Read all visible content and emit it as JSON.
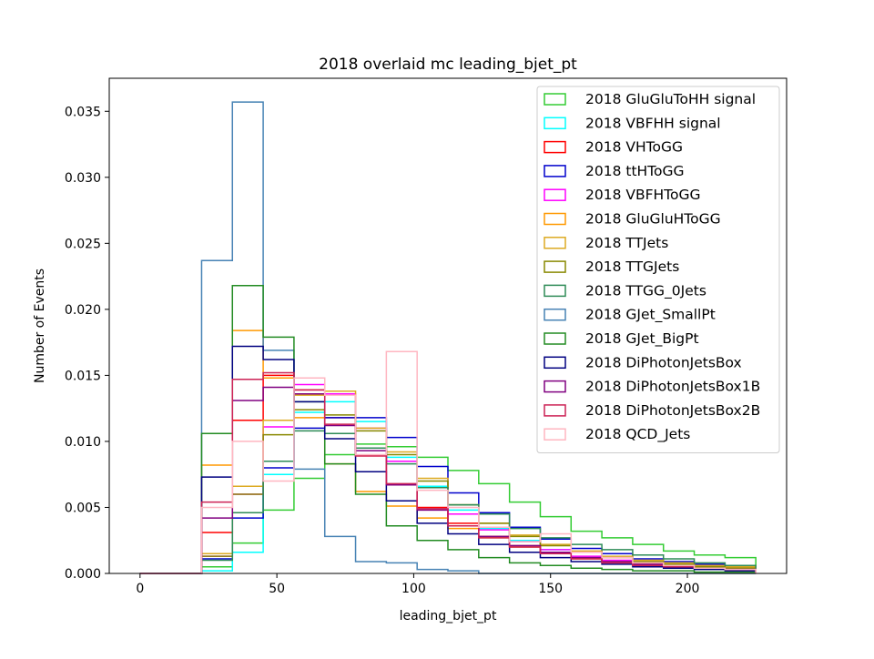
{
  "chart_data": {
    "type": "step-histogram",
    "title": "2018 overlaid mc leading_bjet_pt",
    "xlabel": "leading_bjet_pt",
    "ylabel": "Number of Events",
    "xlim": [
      -11.25,
      236.25
    ],
    "ylim": [
      0,
      0.0375
    ],
    "xticks": [
      0,
      50,
      100,
      150,
      200
    ],
    "xtick_labels": [
      "0",
      "50",
      "100",
      "150",
      "200"
    ],
    "yticks": [
      0.0,
      0.005,
      0.01,
      0.015,
      0.02,
      0.025,
      0.03,
      0.035
    ],
    "ytick_labels": [
      "0.000",
      "0.005",
      "0.010",
      "0.015",
      "0.020",
      "0.025",
      "0.030",
      "0.035"
    ],
    "grid": false,
    "legend_position": "upper right",
    "bin_edges": [
      0,
      11.25,
      22.5,
      33.75,
      45,
      56.25,
      67.5,
      78.75,
      90,
      101.25,
      112.5,
      123.75,
      135,
      146.25,
      157.5,
      168.75,
      180,
      191.25,
      202.5,
      213.75,
      225
    ],
    "series": [
      {
        "name": "2018 GluGluToHH signal",
        "color": "#33cc33",
        "values": [
          0,
          0,
          0.0005,
          0.0023,
          0.0048,
          0.0072,
          0.009,
          0.0098,
          0.0096,
          0.0088,
          0.0078,
          0.0068,
          0.0054,
          0.0043,
          0.0032,
          0.0027,
          0.0022,
          0.0017,
          0.0014,
          0.0012
        ]
      },
      {
        "name": "2018 VBFHH signal",
        "color": "#00ffff",
        "values": [
          0,
          0,
          0.0002,
          0.0016,
          0.0075,
          0.0122,
          0.013,
          0.0115,
          0.0088,
          0.0066,
          0.0048,
          0.0034,
          0.0025,
          0.0018,
          0.0012,
          0.0009,
          0.0007,
          0.0005,
          0.0004,
          0.0003
        ]
      },
      {
        "name": "2018 VHToGG",
        "color": "#ff0000",
        "values": [
          0,
          0,
          0.0031,
          0.0116,
          0.015,
          0.0139,
          0.0118,
          0.0089,
          0.0067,
          0.005,
          0.0038,
          0.0028,
          0.0021,
          0.0016,
          0.0012,
          0.0009,
          0.0007,
          0.0005,
          0.0004,
          0.0003
        ]
      },
      {
        "name": "2018 ttHToGG",
        "color": "#0000cc",
        "values": [
          0,
          0,
          0.0011,
          0.0042,
          0.008,
          0.011,
          0.0118,
          0.0118,
          0.0103,
          0.0081,
          0.0061,
          0.0046,
          0.0035,
          0.0026,
          0.0019,
          0.0015,
          0.0011,
          0.0009,
          0.0007,
          0.0005
        ]
      },
      {
        "name": "2018 VBFHToGG",
        "color": "#ff00ff",
        "values": [
          0,
          0,
          0.0013,
          0.006,
          0.0111,
          0.0143,
          0.0136,
          0.011,
          0.0085,
          0.0065,
          0.0045,
          0.0033,
          0.0024,
          0.0018,
          0.0013,
          0.001,
          0.0008,
          0.0006,
          0.0005,
          0.0004
        ]
      },
      {
        "name": "2018 GluGluHToGG",
        "color": "#ff9900",
        "values": [
          0,
          0,
          0.0082,
          0.0184,
          0.0148,
          0.0118,
          0.0083,
          0.0062,
          0.0051,
          0.0042,
          0.0034,
          0.0027,
          0.002,
          0.0015,
          0.0011,
          0.0008,
          0.0006,
          0.0005,
          0.0004,
          0.0003
        ]
      },
      {
        "name": "2018 TTJets",
        "color": "#ddaa22",
        "values": [
          0,
          0,
          0.0015,
          0.0066,
          0.0116,
          0.0135,
          0.0138,
          0.011,
          0.0092,
          0.0072,
          0.0052,
          0.0038,
          0.0029,
          0.0022,
          0.0017,
          0.0013,
          0.001,
          0.0008,
          0.0006,
          0.0005
        ]
      },
      {
        "name": "2018 TTGJets",
        "color": "#888800",
        "values": [
          0,
          0,
          0.0013,
          0.006,
          0.0105,
          0.0124,
          0.012,
          0.0108,
          0.009,
          0.007,
          0.0052,
          0.0038,
          0.0028,
          0.0021,
          0.0016,
          0.0012,
          0.0009,
          0.0007,
          0.0005,
          0.0004
        ]
      },
      {
        "name": "2018 TTGG_0Jets",
        "color": "#2e8b57",
        "values": [
          0,
          0,
          0.001,
          0.0046,
          0.0085,
          0.0108,
          0.0106,
          0.0095,
          0.0083,
          0.0065,
          0.0052,
          0.0045,
          0.0034,
          0.0027,
          0.0022,
          0.0018,
          0.0014,
          0.0011,
          0.0008,
          0.0006
        ]
      },
      {
        "name": "2018 GJet_SmallPt",
        "color": "#4682b4",
        "values": [
          0,
          0,
          0.0237,
          0.0357,
          0.0169,
          0.0079,
          0.0028,
          0.0009,
          0.0008,
          0.0003,
          0.0002,
          0,
          0,
          0,
          0,
          0,
          0,
          0,
          0,
          0
        ]
      },
      {
        "name": "2018 GJet_BigPt",
        "color": "#228b22",
        "values": [
          0,
          0,
          0.0106,
          0.0218,
          0.0179,
          0.013,
          0.0083,
          0.006,
          0.0036,
          0.0025,
          0.0018,
          0.0012,
          0.0008,
          0.0006,
          0.0004,
          0.0003,
          0.0002,
          0.0002,
          0.0001,
          0.0001
        ]
      },
      {
        "name": "2018 DiPhotonJetsBox",
        "color": "#000080",
        "values": [
          0,
          0,
          0.0073,
          0.0172,
          0.0162,
          0.013,
          0.0102,
          0.0077,
          0.0055,
          0.0038,
          0.003,
          0.0022,
          0.0016,
          0.0012,
          0.0009,
          0.0007,
          0.0005,
          0.0004,
          0.0003,
          0.0002
        ]
      },
      {
        "name": "2018 DiPhotonJetsBox1B",
        "color": "#800080",
        "values": [
          0,
          0,
          0.0042,
          0.0131,
          0.0141,
          0.0136,
          0.0112,
          0.0093,
          0.0067,
          0.0048,
          0.0036,
          0.0028,
          0.0021,
          0.0016,
          0.0012,
          0.0009,
          0.0007,
          0.0005,
          0.0004,
          0.0003
        ]
      },
      {
        "name": "2018 DiPhotonJetsBox2B",
        "color": "#cc2255",
        "values": [
          0,
          0,
          0.0054,
          0.0147,
          0.0152,
          0.0139,
          0.0113,
          0.0089,
          0.0068,
          0.0049,
          0.0036,
          0.0027,
          0.002,
          0.0015,
          0.0011,
          0.0008,
          0.0006,
          0.0005,
          0.0004,
          0.0003
        ]
      },
      {
        "name": "2018 QCD_Jets",
        "color": "#ffb6c1",
        "values": [
          0,
          0,
          0.005,
          0.01,
          0.007,
          0.0148,
          0.0135,
          0.009,
          0.0168,
          0.0063,
          0.005,
          0.0035,
          0.0024,
          0.003,
          0.0016,
          0.0012,
          0.0008,
          0.0006,
          0.0004,
          0.0003
        ]
      }
    ]
  }
}
